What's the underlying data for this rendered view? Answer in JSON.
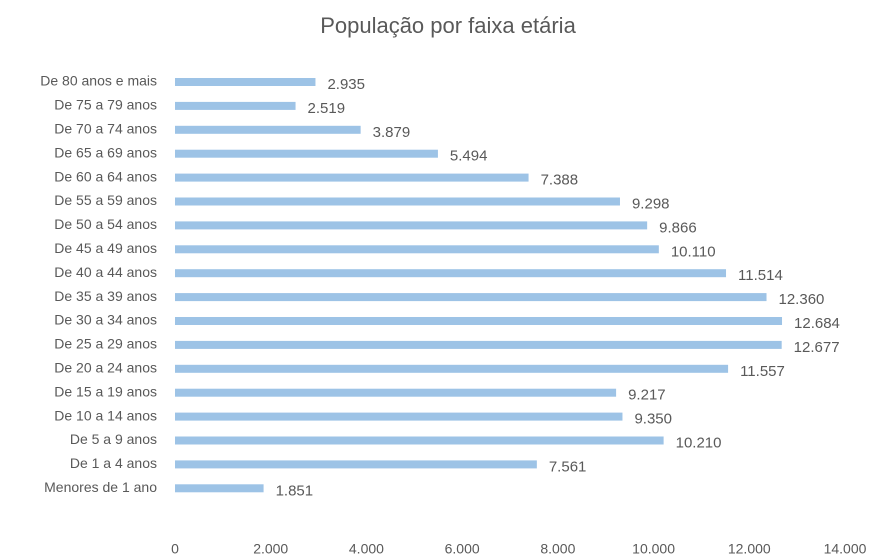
{
  "chart_data": {
    "type": "bar",
    "orientation": "horizontal",
    "title": "População por faixa etária",
    "categories": [
      "De 80 anos e mais",
      "De 75 a 79 anos",
      "De 70 a 74 anos",
      "De 65 a 69 anos",
      "De 60 a 64 anos",
      "De 55 a 59 anos",
      "De 50 a 54 anos",
      "De 45 a 49 anos",
      "De 40 a 44 anos",
      "De 35 a 39 anos",
      "De 30 a 34 anos",
      "De 25 a 29 anos",
      "De 20 a 24 anos",
      "De 15 a 19 anos",
      "De 10 a 14 anos",
      "De 5 a 9 anos",
      "De 1 a 4 anos",
      "Menores de 1 ano"
    ],
    "values": [
      2935,
      2519,
      3879,
      5494,
      7388,
      9298,
      9866,
      10110,
      11514,
      12360,
      12684,
      12677,
      11557,
      9217,
      9350,
      10210,
      7561,
      1851
    ],
    "value_labels": [
      "2.935",
      "2.519",
      "3.879",
      "5.494",
      "7.388",
      "9.298",
      "9.866",
      "10.110",
      "11.514",
      "12.360",
      "12.684",
      "12.677",
      "11.557",
      "9.217",
      "9.350",
      "10.210",
      "7.561",
      "1.851"
    ],
    "color": "#9dc3e6",
    "xlim": [
      0,
      14000
    ],
    "xticks": [
      0,
      {
        "value": 2000,
        "label": "2.000"
      },
      {
        "value": 4000,
        "label": "4.000"
      },
      {
        "value": 6000,
        "label": "6.000"
      },
      {
        "value": 8000,
        "label": "8.000"
      },
      {
        "value": 10000,
        "label": "10.000"
      },
      {
        "value": 12000,
        "label": "12.000"
      },
      {
        "value": 14000,
        "label": "14.000"
      }
    ],
    "grid": false
  }
}
